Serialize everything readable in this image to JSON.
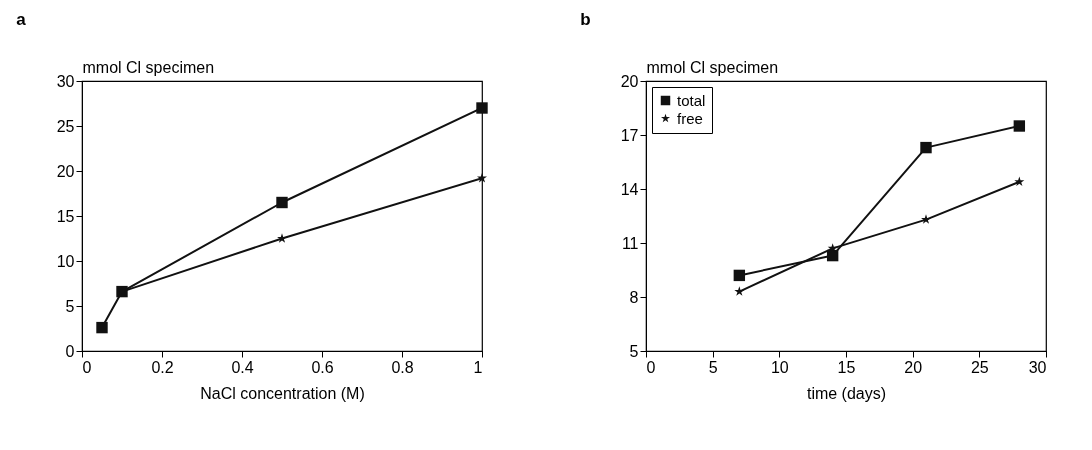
{
  "chart_data": [
    {
      "type": "line",
      "title": "a",
      "ylabel": "mmol Cl specimen",
      "xlabel": "NaCl concentration (M)",
      "x": [
        0.05,
        0.1,
        0.5,
        1
      ],
      "xlim": [
        0,
        1
      ],
      "xticks": [
        0,
        0.2,
        0.4,
        0.6,
        0.8,
        1
      ],
      "ylim": [
        0,
        30
      ],
      "yticks": [
        0,
        5,
        10,
        15,
        20,
        25,
        30
      ],
      "grid": false,
      "series": [
        {
          "color": "#111111",
          "marker": "square",
          "values": [
            2.6,
            6.6,
            16.5,
            27.0
          ]
        },
        {
          "color": "#111111",
          "marker": "star",
          "values": [
            null,
            6.6,
            12.5,
            19.2
          ]
        }
      ]
    },
    {
      "type": "line",
      "title": "b",
      "ylabel": "mmol Cl specimen",
      "xlabel": "time (days)",
      "x": [
        7,
        14,
        21,
        28
      ],
      "xlim": [
        0,
        30
      ],
      "xticks": [
        0,
        5,
        10,
        15,
        20,
        25,
        30
      ],
      "ylim": [
        5,
        20
      ],
      "yticks": [
        5,
        8,
        11,
        14,
        17,
        20
      ],
      "grid": false,
      "legend": "top left",
      "series": [
        {
          "name": "total",
          "color": "#111111",
          "marker": "square",
          "values": [
            9.2,
            10.3,
            16.3,
            17.5
          ]
        },
        {
          "name": "free",
          "color": "#111111",
          "marker": "star",
          "values": [
            8.3,
            10.7,
            12.3,
            14.4
          ]
        }
      ]
    }
  ]
}
